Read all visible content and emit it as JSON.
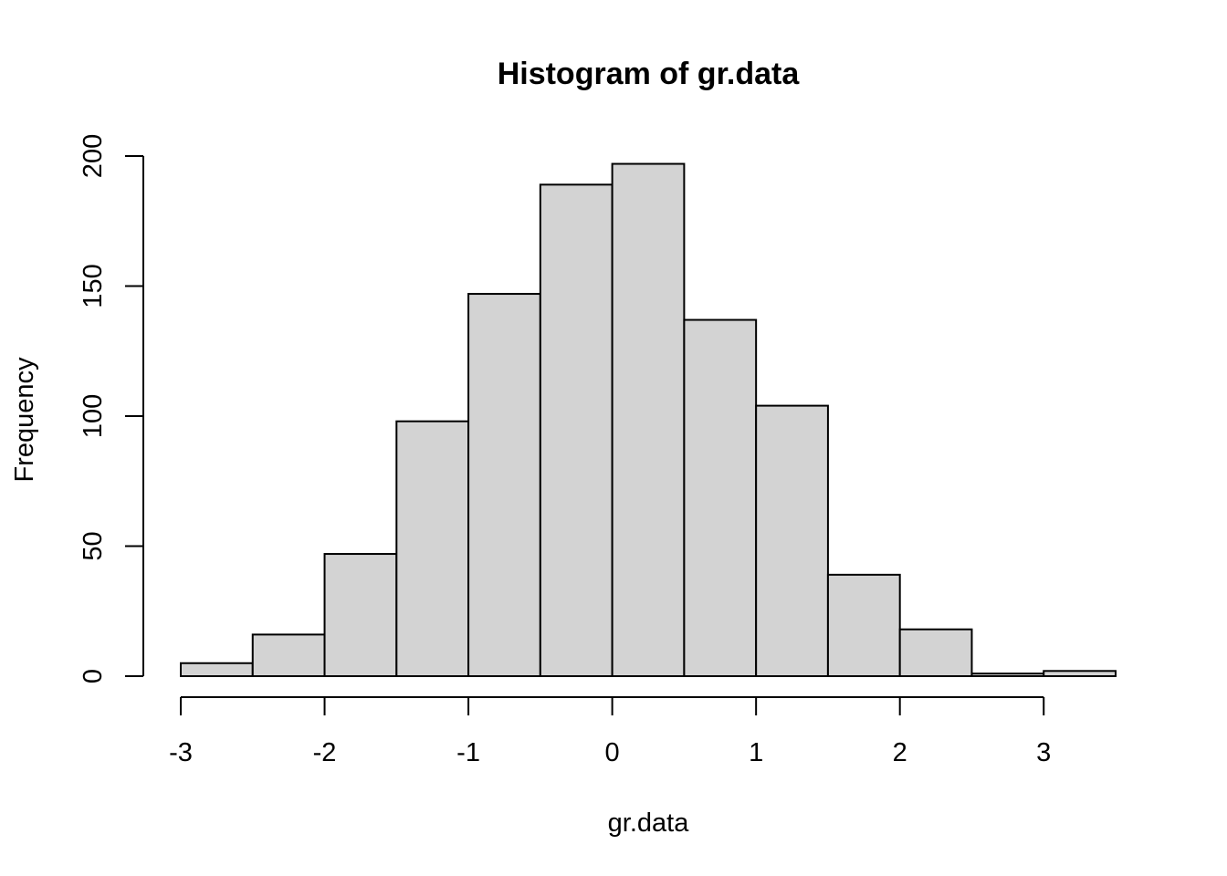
{
  "chart_data": {
    "type": "bar",
    "title": "Histogram of gr.data",
    "xlabel": "gr.data",
    "ylabel": "Frequency",
    "bin_edges": [
      -3,
      -2.5,
      -2,
      -1.5,
      -1,
      -0.5,
      0,
      0.5,
      1,
      1.5,
      2,
      2.5,
      3,
      3.5
    ],
    "values": [
      5,
      16,
      47,
      98,
      147,
      189,
      197,
      137,
      104,
      39,
      18,
      1,
      2
    ],
    "xlim": [
      -3,
      3.5
    ],
    "ylim": [
      0,
      200
    ],
    "x_ticks": [
      -3,
      -2,
      -1,
      0,
      1,
      2,
      3
    ],
    "y_ticks": [
      0,
      50,
      100,
      150,
      200
    ],
    "bar_color": "#d3d3d3",
    "grid": false,
    "legend": "none"
  }
}
